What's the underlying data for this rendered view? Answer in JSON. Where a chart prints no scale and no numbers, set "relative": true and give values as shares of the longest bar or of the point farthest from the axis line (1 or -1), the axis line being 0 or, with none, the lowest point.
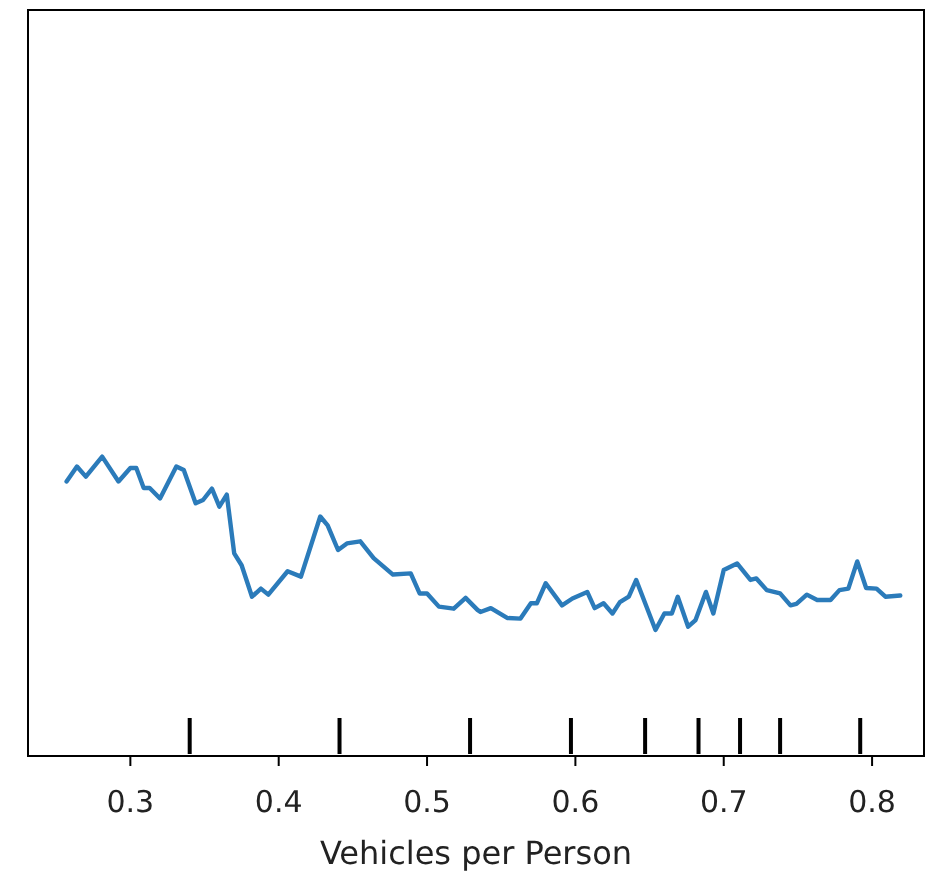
{
  "chart_data": {
    "type": "line",
    "xlabel": "Vehicles per Person",
    "relative": true,
    "xlim": [
      0.231,
      0.835
    ],
    "xticks": [
      0.3,
      0.4,
      0.5,
      0.6,
      0.7,
      0.8
    ],
    "x": [
      0.257,
      0.264,
      0.27,
      0.281,
      0.292,
      0.3,
      0.304,
      0.309,
      0.313,
      0.32,
      0.331,
      0.336,
      0.344,
      0.349,
      0.355,
      0.36,
      0.365,
      0.37,
      0.375,
      0.382,
      0.388,
      0.393,
      0.406,
      0.415,
      0.428,
      0.433,
      0.44,
      0.446,
      0.455,
      0.464,
      0.477,
      0.489,
      0.495,
      0.5,
      0.508,
      0.518,
      0.526,
      0.534,
      0.536,
      0.543,
      0.554,
      0.563,
      0.57,
      0.574,
      0.58,
      0.591,
      0.598,
      0.608,
      0.613,
      0.619,
      0.625,
      0.63,
      0.636,
      0.641,
      0.654,
      0.66,
      0.665,
      0.669,
      0.676,
      0.681,
      0.688,
      0.693,
      0.7,
      0.709,
      0.718,
      0.722,
      0.729,
      0.738,
      0.745,
      0.749,
      0.756,
      0.763,
      0.772,
      0.778,
      0.784,
      0.79,
      0.796,
      0.803,
      0.809,
      0.819
    ],
    "series": [
      {
        "color": "#2b7bba",
        "values": [
          0.917,
          0.967,
          0.933,
          1,
          0.917,
          0.962,
          0.962,
          0.895,
          0.895,
          0.86,
          0.967,
          0.955,
          0.844,
          0.855,
          0.893,
          0.833,
          0.873,
          0.677,
          0.637,
          0.532,
          0.559,
          0.539,
          0.617,
          0.599,
          0.8,
          0.77,
          0.688,
          0.71,
          0.717,
          0.661,
          0.606,
          0.61,
          0.543,
          0.543,
          0.499,
          0.492,
          0.528,
          0.488,
          0.481,
          0.494,
          0.461,
          0.459,
          0.51,
          0.51,
          0.577,
          0.503,
          0.526,
          0.548,
          0.494,
          0.51,
          0.476,
          0.514,
          0.532,
          0.588,
          0.421,
          0.476,
          0.476,
          0.532,
          0.432,
          0.454,
          0.548,
          0.476,
          0.621,
          0.643,
          0.588,
          0.593,
          0.554,
          0.543,
          0.503,
          0.508,
          0.539,
          0.521,
          0.521,
          0.554,
          0.559,
          0.65,
          0.561,
          0.559,
          0.532,
          0.536
        ]
      }
    ],
    "ref_lines": [
      {
        "axis": "x",
        "value": 0.34,
        "color": "#000000"
      },
      {
        "axis": "x",
        "value": 0.441,
        "color": "#000000"
      },
      {
        "axis": "x",
        "value": 0.529,
        "color": "#000000"
      },
      {
        "axis": "x",
        "value": 0.597,
        "color": "#000000"
      },
      {
        "axis": "x",
        "value": 0.647,
        "color": "#000000"
      },
      {
        "axis": "x",
        "value": 0.683,
        "color": "#000000"
      },
      {
        "axis": "x",
        "value": 0.711,
        "color": "#000000"
      },
      {
        "axis": "x",
        "value": 0.738,
        "color": "#000000"
      },
      {
        "axis": "x",
        "value": 0.792,
        "color": "#000000"
      }
    ]
  }
}
